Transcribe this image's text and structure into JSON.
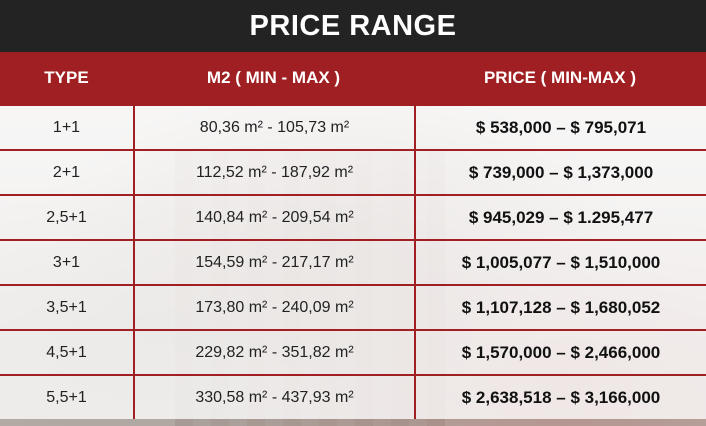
{
  "title": "PRICE RANGE",
  "headers": {
    "type": "TYPE",
    "m2": "M2 ( MIN - MAX )",
    "price": "PRICE ( MIN-MAX )"
  },
  "rows": [
    {
      "type": "1+1",
      "m2": "80,36 m² - 105,73 m²",
      "price": "$ 538,000 – $ 795,071"
    },
    {
      "type": "2+1",
      "m2": "112,52 m² - 187,92 m²",
      "price": "$ 739,000 – $ 1,373,000"
    },
    {
      "type": "2,5+1",
      "m2": "140,84 m² - 209,54 m²",
      "price": "$ 945,029 – $ 1.295,477"
    },
    {
      "type": "3+1",
      "m2": "154,59 m² - 217,17 m²",
      "price": "$ 1,005,077 – $ 1,510,000"
    },
    {
      "type": "3,5+1",
      "m2": "173,80 m² - 240,09 m²",
      "price": "$ 1,107,128 – $ 1,680,052"
    },
    {
      "type": "4,5+1",
      "m2": "229,82 m² - 351,82 m²",
      "price": "$ 1,570,000 – $ 2,466,000"
    },
    {
      "type": "5,5+1",
      "m2": "330,58 m² - 437,93 m²",
      "price": "$ 2,638,518 – $ 3,166,000"
    }
  ],
  "colors": {
    "title_bar": "#232323",
    "header": "#a01f22",
    "grid_lines": "#a01f22"
  }
}
